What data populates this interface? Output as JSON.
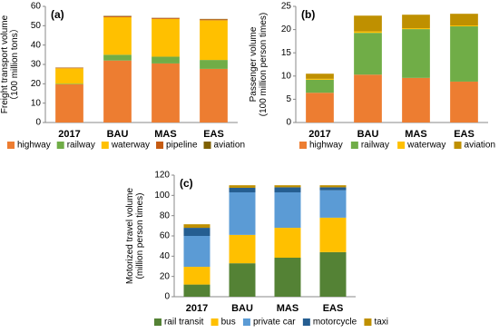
{
  "chart_data": [
    {
      "type": "bar",
      "stacked": true,
      "label": "(a)",
      "ylabel": [
        "Freight transport volume",
        "（100 million tons）"
      ],
      "categories": [
        "2017",
        "BAU",
        "MAS",
        "EAS"
      ],
      "ylim": [
        0,
        60
      ],
      "yticks": [
        0,
        10,
        20,
        30,
        40,
        50,
        60
      ],
      "series": [
        {
          "name": "highway",
          "color": "#ED7D31",
          "values": [
            19.7,
            32,
            30.5,
            27.7
          ]
        },
        {
          "name": "railway",
          "color": "#70AD47",
          "values": [
            0.3,
            3,
            3.5,
            4.6
          ]
        },
        {
          "name": "waterway",
          "color": "#FFC000",
          "values": [
            8,
            19.4,
            19.5,
            20.5
          ]
        },
        {
          "name": "pipeline",
          "color": "#C55A11",
          "values": [
            0.3,
            0.5,
            0.5,
            0.5
          ]
        },
        {
          "name": "aviation",
          "color": "#7F6000",
          "values": [
            0.1,
            0.2,
            0.1,
            0.2
          ]
        }
      ]
    },
    {
      "type": "bar",
      "stacked": true,
      "label": "(b)",
      "ylabel": [
        "Passenger volume",
        "(100 million person times)"
      ],
      "categories": [
        "2017",
        "BAU",
        "MAS",
        "EAS"
      ],
      "ylim": [
        0,
        25
      ],
      "yticks": [
        0,
        5,
        10,
        15,
        20,
        25
      ],
      "series": [
        {
          "name": "highway",
          "color": "#ED7D31",
          "values": [
            6.4,
            10.3,
            9.6,
            8.8
          ]
        },
        {
          "name": "railway",
          "color": "#70AD47",
          "values": [
            2.8,
            9,
            10.5,
            11.9
          ]
        },
        {
          "name": "waterway",
          "color": "#FFC000",
          "values": [
            0.2,
            0.3,
            0.2,
            0.2
          ]
        },
        {
          "name": "aviation",
          "color": "#BF9000",
          "values": [
            1.1,
            3.4,
            2.9,
            2.5
          ]
        }
      ]
    },
    {
      "type": "bar",
      "stacked": true,
      "label": "(c)",
      "ylabel": [
        "Motorized travel volume",
        "(million person times)"
      ],
      "categories": [
        "2017",
        "BAU",
        "MAS",
        "EAS"
      ],
      "ylim": [
        0,
        120
      ],
      "yticks": [
        0,
        20,
        40,
        60,
        80,
        100,
        120
      ],
      "series": [
        {
          "name": "rail transit",
          "color": "#548235",
          "values": [
            12,
            33,
            38.5,
            44
          ]
        },
        {
          "name": "bus",
          "color": "#FFC000",
          "values": [
            17.5,
            28,
            29.5,
            34
          ]
        },
        {
          "name": "private car",
          "color": "#5B9BD5",
          "values": [
            30.5,
            42,
            35,
            27
          ]
        },
        {
          "name": "motorcycle",
          "color": "#255E91",
          "values": [
            8,
            4.5,
            5,
            3
          ]
        },
        {
          "name": "taxi",
          "color": "#BF9000",
          "values": [
            3.5,
            2.5,
            2,
            2
          ]
        }
      ]
    }
  ]
}
